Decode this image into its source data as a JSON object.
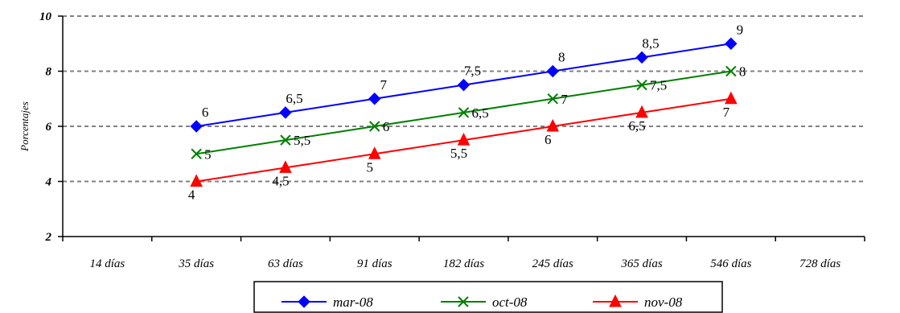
{
  "chart_data": {
    "type": "line",
    "title": "",
    "xlabel": "",
    "ylabel": "Porcentajes",
    "categories": [
      "14 días",
      "35 días",
      "63 días",
      "91 días",
      "182 días",
      "245 días",
      "365 días",
      "546 días",
      "728 días"
    ],
    "ylim": [
      2,
      10
    ],
    "yticks": [
      "2",
      "4",
      "6",
      "8",
      "10"
    ],
    "grid": "horizontal dashed",
    "legend_position": "bottom",
    "series": [
      {
        "name": "mar-08",
        "color": "#0000FF",
        "marker": "diamond",
        "values": [
          null,
          6,
          6.5,
          7,
          7.5,
          8,
          8.5,
          9,
          null
        ],
        "labels": [
          null,
          "6",
          "6,5",
          "7",
          "7,5",
          "8",
          "8,5",
          "9",
          null
        ]
      },
      {
        "name": "oct-08",
        "color": "#008000",
        "marker": "x",
        "values": [
          null,
          5,
          5.5,
          6,
          6.5,
          7,
          7.5,
          8,
          null
        ],
        "labels": [
          null,
          "5",
          "5,5",
          "6",
          "6,5",
          "7",
          "7,5",
          "8",
          null
        ]
      },
      {
        "name": "nov-08",
        "color": "#FF0000",
        "marker": "triangle",
        "values": [
          null,
          4,
          4.5,
          5,
          5.5,
          6,
          6.5,
          7,
          null
        ],
        "labels": [
          null,
          "4",
          "4,5",
          "5",
          "5,5",
          "6",
          "6,5",
          "7",
          null
        ]
      }
    ]
  }
}
